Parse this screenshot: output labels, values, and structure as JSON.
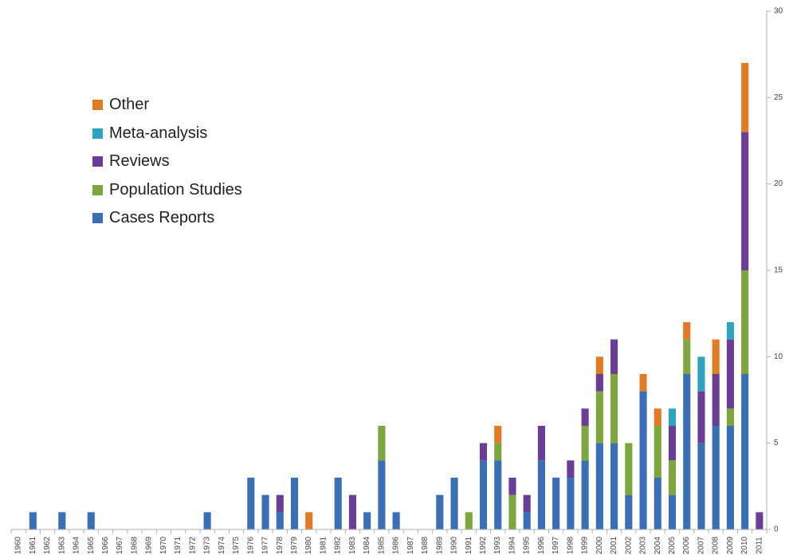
{
  "chart_data": {
    "type": "bar",
    "stacked": true,
    "categories": [
      "1960",
      "1961",
      "1962",
      "1963",
      "1964",
      "1965",
      "1966",
      "1967",
      "1968",
      "1969",
      "1970",
      "1971",
      "1972",
      "1973",
      "1974",
      "1975",
      "1976",
      "1977",
      "1978",
      "1979",
      "1980",
      "1981",
      "1982",
      "1983",
      "1984",
      "1985",
      "1986",
      "1987",
      "1988",
      "1989",
      "1990",
      "1991",
      "1992",
      "1993",
      "1994",
      "1995",
      "1996",
      "1997",
      "1998",
      "1999",
      "2000",
      "2001",
      "2002",
      "2003",
      "2004",
      "2005",
      "2006",
      "2007",
      "2008",
      "2009",
      "2010",
      "2011"
    ],
    "series": [
      {
        "name": "Cases Reports",
        "color": "#3a6fb5",
        "values": [
          0,
          1,
          0,
          1,
          0,
          1,
          0,
          0,
          0,
          0,
          0,
          0,
          0,
          1,
          0,
          0,
          3,
          2,
          1,
          3,
          0,
          0,
          3,
          0,
          1,
          4,
          1,
          0,
          0,
          2,
          3,
          0,
          4,
          4,
          0,
          1,
          4,
          3,
          3,
          4,
          5,
          5,
          2,
          8,
          3,
          2,
          9,
          5,
          6,
          6,
          9,
          0
        ]
      },
      {
        "name": "Population Studies",
        "color": "#7da63e",
        "values": [
          0,
          0,
          0,
          0,
          0,
          0,
          0,
          0,
          0,
          0,
          0,
          0,
          0,
          0,
          0,
          0,
          0,
          0,
          0,
          0,
          0,
          0,
          0,
          0,
          0,
          2,
          0,
          0,
          0,
          0,
          0,
          1,
          0,
          1,
          2,
          0,
          0,
          0,
          0,
          2,
          3,
          4,
          3,
          0,
          3,
          2,
          2,
          0,
          0,
          1,
          6,
          0
        ]
      },
      {
        "name": "Reviews",
        "color": "#6a3d96",
        "values": [
          0,
          0,
          0,
          0,
          0,
          0,
          0,
          0,
          0,
          0,
          0,
          0,
          0,
          0,
          0,
          0,
          0,
          0,
          1,
          0,
          0,
          0,
          0,
          2,
          0,
          0,
          0,
          0,
          0,
          0,
          0,
          0,
          1,
          0,
          1,
          1,
          2,
          0,
          1,
          1,
          1,
          2,
          0,
          0,
          0,
          2,
          0,
          3,
          3,
          4,
          8,
          1
        ]
      },
      {
        "name": "Meta-analysis",
        "color": "#2ea3c0",
        "values": [
          0,
          0,
          0,
          0,
          0,
          0,
          0,
          0,
          0,
          0,
          0,
          0,
          0,
          0,
          0,
          0,
          0,
          0,
          0,
          0,
          0,
          0,
          0,
          0,
          0,
          0,
          0,
          0,
          0,
          0,
          0,
          0,
          0,
          0,
          0,
          0,
          0,
          0,
          0,
          0,
          0,
          0,
          0,
          0,
          0,
          1,
          0,
          2,
          0,
          1,
          0,
          0
        ]
      },
      {
        "name": "Other",
        "color": "#e07a24",
        "values": [
          0,
          0,
          0,
          0,
          0,
          0,
          0,
          0,
          0,
          0,
          0,
          0,
          0,
          0,
          0,
          0,
          0,
          0,
          0,
          0,
          1,
          0,
          0,
          0,
          0,
          0,
          0,
          0,
          0,
          0,
          0,
          0,
          0,
          1,
          0,
          0,
          0,
          0,
          0,
          0,
          1,
          0,
          0,
          1,
          1,
          0,
          1,
          0,
          2,
          0,
          4,
          0
        ]
      }
    ],
    "ylim": [
      0,
      30
    ],
    "yticks": [
      "0",
      "5",
      "10",
      "15",
      "20",
      "25",
      "30"
    ],
    "y_axis_side": "right",
    "grid": false,
    "legend": {
      "placement": "top-left",
      "order": [
        "Other",
        "Meta-analysis",
        "Reviews",
        "Population Studies",
        "Cases Reports"
      ]
    }
  }
}
